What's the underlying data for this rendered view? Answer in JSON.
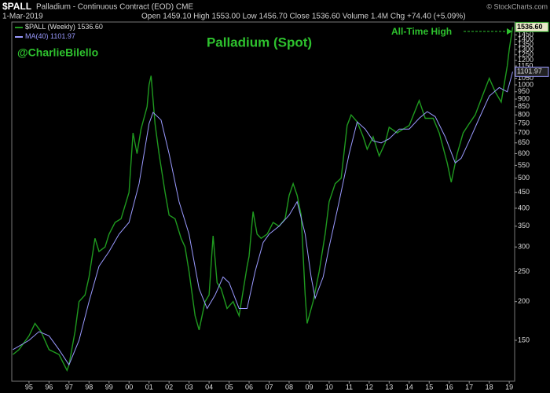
{
  "header": {
    "symbol": "$PALL",
    "description": "Palladium - Continuous Contract (EOD) CME",
    "date": "1-Mar-2019",
    "quote": "Open 1459.10 High 1553.00 Low 1456.70 Close 1536.60 Volume 1.4M Chg +74.40 (+5.09%)",
    "credit": "© StockCharts.com"
  },
  "chart_data": {
    "type": "line",
    "title": "Palladium (Spot)",
    "annotations": [
      "@CharlieBilello",
      "All-Time High"
    ],
    "y_scale": "log",
    "grid": false,
    "legend": "upper left",
    "xlim": [
      1994.14,
      2019.27
    ],
    "ylim": [
      110.7,
      1595
    ],
    "xticks": [
      {
        "value": 1995,
        "label": "95"
      },
      {
        "value": 1996,
        "label": "96"
      },
      {
        "value": 1997,
        "label": "97"
      },
      {
        "value": 1998,
        "label": "98"
      },
      {
        "value": 1999,
        "label": "99"
      },
      {
        "value": 2000,
        "label": "00"
      },
      {
        "value": 2001,
        "label": "01"
      },
      {
        "value": 2002,
        "label": "02"
      },
      {
        "value": 2003,
        "label": "03"
      },
      {
        "value": 2004,
        "label": "04"
      },
      {
        "value": 2005,
        "label": "05"
      },
      {
        "value": 2006,
        "label": "06"
      },
      {
        "value": 2007,
        "label": "07"
      },
      {
        "value": 2008,
        "label": "08"
      },
      {
        "value": 2009,
        "label": "09"
      },
      {
        "value": 2010,
        "label": "10"
      },
      {
        "value": 2011,
        "label": "11"
      },
      {
        "value": 2012,
        "label": "12"
      },
      {
        "value": 2013,
        "label": "13"
      },
      {
        "value": 2014,
        "label": "14"
      },
      {
        "value": 2015,
        "label": "15"
      },
      {
        "value": 2016,
        "label": "16"
      },
      {
        "value": 2017,
        "label": "17"
      },
      {
        "value": 2018,
        "label": "18"
      },
      {
        "value": 2019,
        "label": "19"
      }
    ],
    "yticks": [
      150,
      200,
      250,
      300,
      350,
      400,
      450,
      500,
      550,
      600,
      650,
      700,
      750,
      800,
      850,
      900,
      950,
      1000,
      1050,
      1150,
      1200,
      1250,
      1300,
      1350,
      1400,
      1450
    ],
    "series": [
      {
        "name": "$PALL (Weekly)",
        "color": "#1f9a1f",
        "last_label": "1536.60",
        "x": [
          1994.2,
          1994.5,
          1995.0,
          1995.3,
          1995.6,
          1996.0,
          1996.5,
          1996.9,
          1997.0,
          1997.3,
          1997.5,
          1997.8,
          1998.0,
          1998.3,
          1998.5,
          1998.8,
          1999.0,
          1999.3,
          1999.6,
          2000.0,
          2000.2,
          2000.4,
          2000.6,
          2000.9,
          2001.0,
          2001.1,
          2001.3,
          2001.5,
          2001.8,
          2002.0,
          2002.3,
          2002.6,
          2002.8,
          2003.0,
          2003.3,
          2003.5,
          2003.8,
          2004.0,
          2004.2,
          2004.4,
          2004.6,
          2004.9,
          2005.2,
          2005.5,
          2005.9,
          2006.0,
          2006.2,
          2006.4,
          2006.6,
          2006.9,
          2007.2,
          2007.5,
          2007.8,
          2008.0,
          2008.2,
          2008.4,
          2008.6,
          2008.8,
          2008.9,
          2009.2,
          2009.5,
          2009.8,
          2010.0,
          2010.3,
          2010.6,
          2010.9,
          2011.1,
          2011.4,
          2011.7,
          2011.9,
          2012.2,
          2012.5,
          2012.8,
          2013.0,
          2013.4,
          2013.7,
          2014.0,
          2014.5,
          2014.8,
          2015.2,
          2015.5,
          2015.9,
          2016.1,
          2016.4,
          2016.7,
          2017.0,
          2017.3,
          2017.6,
          2018.0,
          2018.3,
          2018.6,
          2018.9,
          2019.0,
          2019.17
        ],
        "values": [
          135,
          140,
          155,
          170,
          160,
          140,
          135,
          120,
          125,
          160,
          200,
          210,
          240,
          320,
          290,
          300,
          330,
          360,
          370,
          450,
          700,
          600,
          720,
          850,
          1000,
          1070,
          750,
          600,
          450,
          380,
          370,
          320,
          300,
          250,
          180,
          162,
          200,
          210,
          326,
          230,
          220,
          190,
          200,
          180,
          260,
          280,
          390,
          330,
          320,
          330,
          360,
          350,
          370,
          440,
          480,
          440,
          380,
          210,
          170,
          200,
          250,
          330,
          420,
          480,
          500,
          740,
          800,
          760,
          680,
          620,
          680,
          590,
          650,
          730,
          700,
          720,
          740,
          890,
          780,
          780,
          700,
          560,
          485,
          600,
          700,
          750,
          800,
          900,
          1050,
          950,
          880,
          1150,
          1300,
          1536.6
        ]
      },
      {
        "name": "MA(40)",
        "color": "#9a9aff",
        "last_label": "1101.97",
        "x": [
          1994.2,
          1995.0,
          1995.5,
          1996.0,
          1996.5,
          1997.0,
          1997.5,
          1998.0,
          1998.5,
          1999.0,
          1999.5,
          2000.0,
          2000.5,
          2001.0,
          2001.2,
          2001.6,
          2002.0,
          2002.5,
          2003.0,
          2003.5,
          2003.9,
          2004.3,
          2004.7,
          2005.0,
          2005.5,
          2005.9,
          2006.3,
          2006.7,
          2007.0,
          2007.5,
          2008.0,
          2008.4,
          2008.8,
          2009.1,
          2009.3,
          2009.7,
          2010.0,
          2010.5,
          2011.0,
          2011.4,
          2011.8,
          2012.2,
          2012.6,
          2013.0,
          2013.5,
          2014.0,
          2014.5,
          2014.9,
          2015.3,
          2015.8,
          2016.3,
          2016.6,
          2017.0,
          2017.5,
          2018.0,
          2018.5,
          2018.9,
          2019.17
        ],
        "values": [
          140,
          150,
          160,
          155,
          140,
          125,
          150,
          200,
          260,
          290,
          330,
          360,
          480,
          750,
          815,
          770,
          600,
          420,
          330,
          220,
          190,
          210,
          240,
          230,
          190,
          190,
          250,
          310,
          330,
          350,
          380,
          420,
          330,
          240,
          205,
          240,
          300,
          420,
          600,
          760,
          720,
          660,
          650,
          670,
          720,
          720,
          780,
          820,
          790,
          680,
          560,
          580,
          660,
          780,
          920,
          980,
          950,
          1101.97
        ]
      }
    ]
  }
}
